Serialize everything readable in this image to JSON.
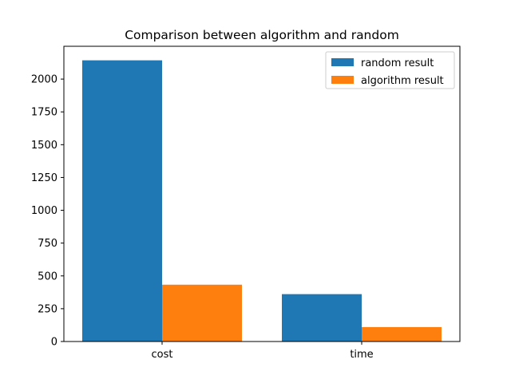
{
  "chart_data": {
    "type": "bar",
    "title": "Comparison between algorithm and random",
    "xlabel": "",
    "ylabel": "",
    "categories": [
      "cost",
      "time"
    ],
    "series": [
      {
        "name": "random result",
        "values": [
          2143,
          361
        ],
        "color": "#1f77b4"
      },
      {
        "name": "algorithm result",
        "values": [
          433,
          110
        ],
        "color": "#ff7f0e"
      }
    ],
    "ylim": [
      0,
      2250
    ],
    "yticks": [
      0,
      250,
      500,
      750,
      1000,
      1250,
      1500,
      1750,
      2000
    ],
    "grid": false,
    "legend_position": "top-right"
  }
}
